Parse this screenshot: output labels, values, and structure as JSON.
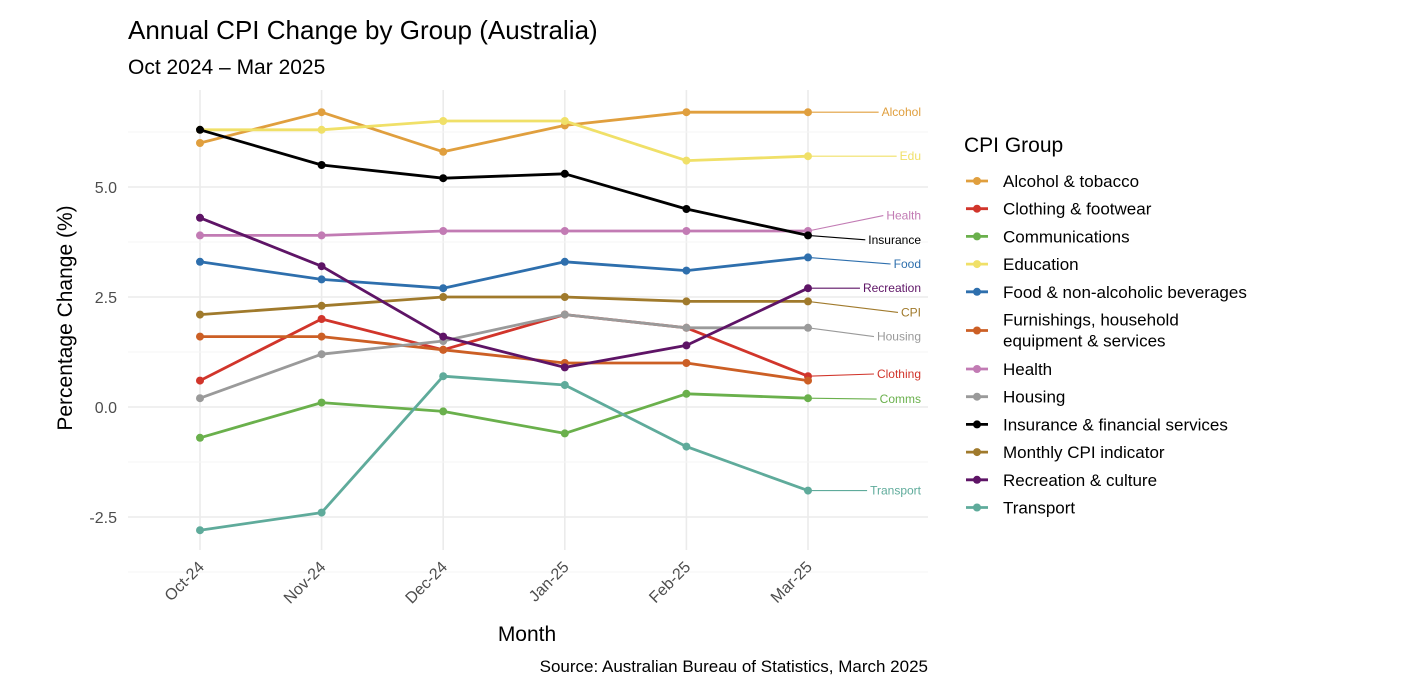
{
  "chart_data": {
    "type": "line",
    "title": "Annual CPI Change by Group (Australia)",
    "subtitle": "Oct 2024 – Mar 2025",
    "xlabel": "Month",
    "ylabel": "Percentage Change (%)",
    "caption": "Source: Australian Bureau of Statistics, March 2025",
    "categories": [
      "Oct-24",
      "Nov-24",
      "Dec-24",
      "Jan-25",
      "Feb-25",
      "Mar-25"
    ],
    "ylim": [
      -3.1,
      7.2
    ],
    "yticks": [
      -2.5,
      0.0,
      2.5,
      5.0
    ],
    "ytick_labels": [
      "-2.5",
      "0.0",
      "2.5",
      "5.0"
    ],
    "grid": true,
    "legend": {
      "title": "CPI Group",
      "position": "right",
      "items": [
        "Alcohol & tobacco",
        "Clothing & footwear",
        "Communications",
        "Education",
        "Food & non-alcoholic beverages",
        "Furnishings, household equipment & services",
        "Health",
        "Housing",
        "Insurance & financial services",
        "Monthly CPI indicator",
        "Recreation & culture",
        "Transport"
      ]
    },
    "series": [
      {
        "name": "Alcohol & tobacco",
        "short": "Alcohol",
        "color": "#E09F3E",
        "values": [
          6.0,
          6.7,
          5.8,
          6.4,
          6.7,
          6.7
        ]
      },
      {
        "name": "Clothing & footwear",
        "short": "Clothing",
        "color": "#D1352B",
        "values": [
          0.6,
          2.0,
          1.3,
          2.1,
          1.8,
          0.7
        ]
      },
      {
        "name": "Communications",
        "short": "Comms",
        "color": "#6AB04C",
        "values": [
          -0.7,
          0.1,
          -0.1,
          -0.6,
          0.3,
          0.2
        ]
      },
      {
        "name": "Education",
        "short": "Edu",
        "color": "#F0E068",
        "values": [
          6.3,
          6.3,
          6.5,
          6.5,
          5.6,
          5.7
        ]
      },
      {
        "name": "Food & non-alcoholic beverages",
        "short": "Food",
        "color": "#2E6FAD",
        "values": [
          3.3,
          2.9,
          2.7,
          3.3,
          3.1,
          3.4
        ]
      },
      {
        "name": "Furnishings, household equipment & services",
        "short": "",
        "color": "#CC5F25",
        "values": [
          1.6,
          1.6,
          1.3,
          1.0,
          1.0,
          0.6
        ]
      },
      {
        "name": "Health",
        "short": "Health",
        "color": "#C27BB4",
        "values": [
          3.9,
          3.9,
          4.0,
          4.0,
          4.0,
          4.0
        ]
      },
      {
        "name": "Housing",
        "short": "Housing",
        "color": "#9A9A9A",
        "values": [
          0.2,
          1.2,
          1.5,
          2.1,
          1.8,
          1.8
        ]
      },
      {
        "name": "Insurance & financial services",
        "short": "Insurance",
        "color": "#000000",
        "values": [
          6.3,
          5.5,
          5.2,
          5.3,
          4.5,
          3.9
        ]
      },
      {
        "name": "Monthly CPI indicator",
        "short": "CPI",
        "color": "#A07A2C",
        "values": [
          2.1,
          2.3,
          2.5,
          2.5,
          2.4,
          2.4
        ]
      },
      {
        "name": "Recreation & culture",
        "short": "Recreation",
        "color": "#5E1466",
        "values": [
          4.3,
          3.2,
          1.6,
          0.9,
          1.4,
          2.7
        ]
      },
      {
        "name": "Transport",
        "short": "Transport",
        "color": "#5FAB9B",
        "values": [
          -2.8,
          -2.4,
          0.7,
          0.5,
          -0.9,
          -1.9
        ]
      }
    ],
    "end_labels": [
      {
        "series": "Alcohol & tobacco",
        "text": "Alcohol",
        "label_value": 6.7
      },
      {
        "series": "Education",
        "text": "Edu",
        "label_value": 5.7
      },
      {
        "series": "Health",
        "text": "Health",
        "label_value": 4.35
      },
      {
        "series": "Insurance & financial services",
        "text": "Insurance",
        "label_value": 3.8
      },
      {
        "series": "Food & non-alcoholic beverages",
        "text": "Food",
        "label_value": 3.25
      },
      {
        "series": "Recreation & culture",
        "text": "Recreation",
        "label_value": 2.7
      },
      {
        "series": "Monthly CPI indicator",
        "text": "CPI",
        "label_value": 2.15
      },
      {
        "series": "Housing",
        "text": "Housing",
        "label_value": 1.6
      },
      {
        "series": "Clothing & footwear",
        "text": "Clothing",
        "label_value": 0.75
      },
      {
        "series": "Communications",
        "text": "Comms",
        "label_value": 0.18
      },
      {
        "series": "Transport",
        "text": "Transport",
        "label_value": -1.9
      }
    ]
  }
}
